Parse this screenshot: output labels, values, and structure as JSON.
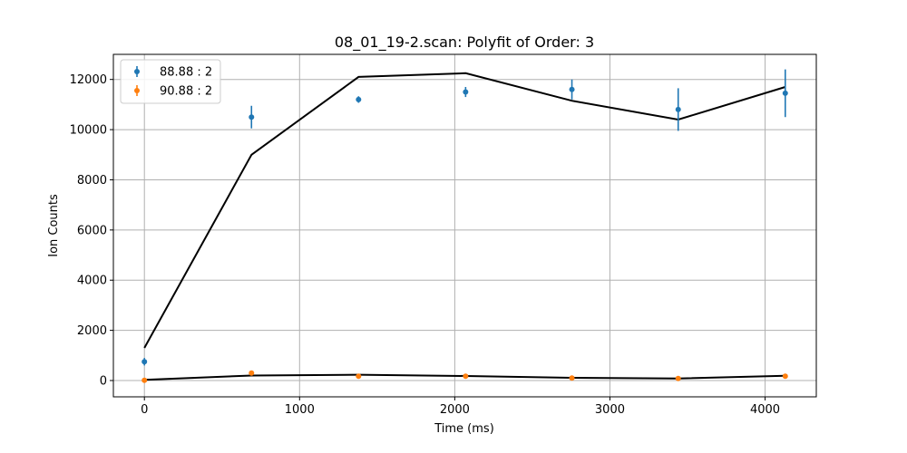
{
  "chart_data": {
    "type": "scatter",
    "title": "08_01_19-2.scan:  Polyfit of Order: 3",
    "xlabel": "Time (ms)",
    "ylabel": "Ion Counts",
    "xlim": [
      -200,
      4330
    ],
    "ylim": [
      -650,
      13000
    ],
    "x_ticks": [
      0,
      1000,
      2000,
      3000,
      4000
    ],
    "x_tick_labels": [
      "0",
      "1000",
      "2000",
      "3000",
      "4000"
    ],
    "y_ticks": [
      0,
      2000,
      4000,
      6000,
      8000,
      10000,
      12000
    ],
    "y_tick_labels": [
      "0",
      "2000",
      "4000",
      "6000",
      "8000",
      "10000",
      "12000"
    ],
    "grid": true,
    "legend_position": "top-left",
    "series": [
      {
        "name": "88.88 : 2",
        "color": "#1f77b4",
        "x": [
          0,
          690,
          1380,
          2070,
          2755,
          3440,
          4130
        ],
        "y": [
          750,
          10500,
          11200,
          11500,
          11600,
          10800,
          11450
        ],
        "yerr": [
          150,
          450,
          130,
          200,
          400,
          850,
          950
        ],
        "fit_color": "#000000",
        "fit": [
          1300,
          9000,
          12100,
          12250,
          11150,
          10400,
          11700
        ]
      },
      {
        "name": "90.88 : 2",
        "color": "#ff7f0e",
        "x": [
          0,
          690,
          1380,
          2070,
          2755,
          3440,
          4130
        ],
        "y": [
          10,
          300,
          170,
          170,
          100,
          80,
          170
        ],
        "yerr": [
          10,
          30,
          20,
          20,
          15,
          15,
          20
        ],
        "fit_color": "#000000",
        "fit": [
          30,
          200,
          230,
          180,
          110,
          80,
          190
        ]
      }
    ]
  }
}
